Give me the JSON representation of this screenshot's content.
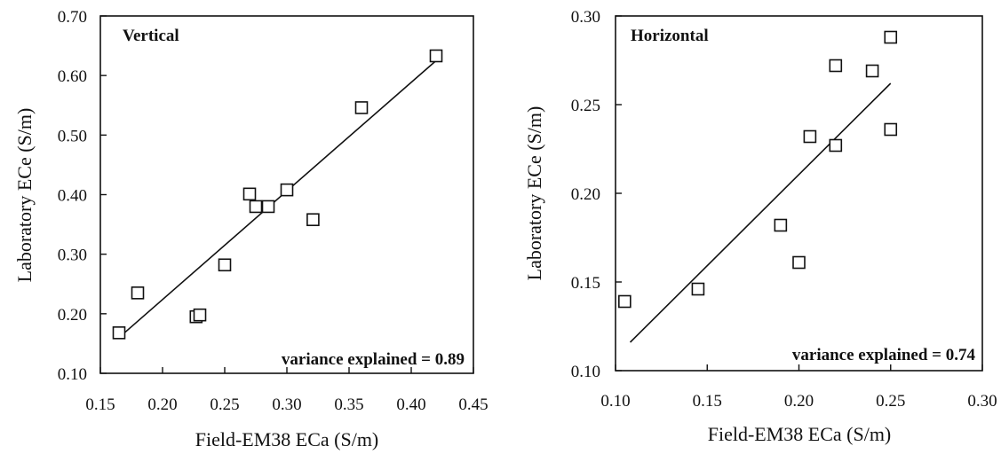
{
  "chart_data": [
    {
      "type": "scatter",
      "title": "Vertical",
      "xlabel": "Field-EM38 ECa (S/m)",
      "ylabel": "Laboratory ECe (S/m)",
      "xlim": [
        0.15,
        0.45
      ],
      "ylim": [
        0.1,
        0.7
      ],
      "xticks": [
        "0.15",
        "0.20",
        "0.25",
        "0.30",
        "0.35",
        "0.40",
        "0.45"
      ],
      "yticks": [
        "0.10",
        "0.20",
        "0.30",
        "0.40",
        "0.50",
        "0.60",
        "0.70"
      ],
      "x": [
        0.165,
        0.18,
        0.227,
        0.23,
        0.25,
        0.27,
        0.275,
        0.285,
        0.3,
        0.321,
        0.36,
        0.42
      ],
      "y": [
        0.168,
        0.235,
        0.195,
        0.198,
        0.282,
        0.401,
        0.38,
        0.38,
        0.408,
        0.358,
        0.546,
        0.633
      ],
      "fit_line": {
        "x": [
          0.165,
          0.42
        ],
        "y": [
          0.16,
          0.625
        ]
      },
      "annotation": "variance explained = 0.89"
    },
    {
      "type": "scatter",
      "title": "Horizontal",
      "xlabel": "Field-EM38 ECa (S/m)",
      "ylabel": "Laboratory ECe (S/m)",
      "xlim": [
        0.1,
        0.3
      ],
      "ylim": [
        0.1,
        0.3
      ],
      "xticks": [
        "0.10",
        "0.15",
        "0.20",
        "0.25",
        "0.30"
      ],
      "yticks": [
        "0.10",
        "0.15",
        "0.20",
        "0.25",
        "0.30"
      ],
      "x": [
        0.105,
        0.145,
        0.19,
        0.2,
        0.206,
        0.22,
        0.22,
        0.24,
        0.25,
        0.25
      ],
      "y": [
        0.139,
        0.146,
        0.182,
        0.161,
        0.232,
        0.227,
        0.272,
        0.269,
        0.236,
        0.288
      ],
      "fit_line": {
        "x": [
          0.108,
          0.25
        ],
        "y": [
          0.116,
          0.262
        ]
      },
      "annotation": "variance explained = 0.74"
    }
  ]
}
